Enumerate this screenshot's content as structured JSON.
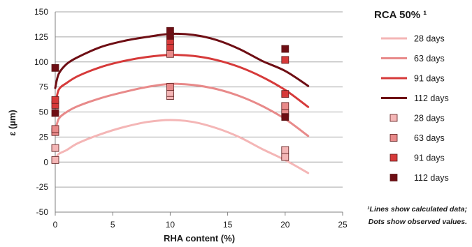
{
  "chart_data": {
    "type": "line",
    "title": "RCA 50% ¹",
    "xlabel": "RHA content (%)",
    "ylabel": "ε (µm)",
    "xlim": [
      0,
      25
    ],
    "ylim": [
      -50,
      150
    ],
    "xticks": [
      0,
      5,
      10,
      15,
      20,
      25
    ],
    "yticks": [
      -50,
      -25,
      0,
      25,
      50,
      75,
      100,
      125,
      150
    ],
    "grid": "horizontal",
    "legend_position": "right",
    "note": [
      "¹Lines show calculated data;",
      "Dots show observed values."
    ],
    "line_series": [
      {
        "name": "28 days",
        "color": "#f4b6b6",
        "x": [
          0,
          0.3,
          1,
          2,
          4,
          6,
          8,
          10,
          12,
          14,
          16,
          18,
          20,
          22
        ],
        "y": [
          2,
          8,
          12,
          19,
          28,
          35,
          40,
          42,
          40,
          34,
          25,
          13,
          2,
          -11
        ]
      },
      {
        "name": "63 days",
        "color": "#e88a8a",
        "x": [
          0,
          0.3,
          1,
          2,
          4,
          6,
          8,
          10,
          12,
          14,
          16,
          18,
          20,
          22
        ],
        "y": [
          30,
          43,
          50,
          56,
          64,
          70,
          75,
          78,
          77,
          73,
          66,
          56,
          43,
          26
        ]
      },
      {
        "name": "91 days",
        "color": "#d63a3a",
        "x": [
          0,
          0.3,
          1,
          2,
          4,
          6,
          8,
          10,
          12,
          14,
          16,
          18,
          20,
          22
        ],
        "y": [
          56,
          72,
          79,
          86,
          95,
          101,
          105,
          107,
          106,
          102,
          95,
          85,
          72,
          55
        ]
      },
      {
        "name": "112 days",
        "color": "#6e0e14",
        "x": [
          0,
          0.3,
          1,
          2,
          4,
          6,
          8,
          10,
          12,
          14,
          16,
          18,
          20,
          22
        ],
        "y": [
          74,
          88,
          98,
          105,
          115,
          121,
          125,
          128,
          127,
          122,
          113,
          101,
          91,
          76
        ]
      }
    ],
    "point_series": [
      {
        "name": "28 days",
        "color": "#f4b6b6",
        "x": [
          0,
          0,
          10,
          10,
          20,
          20
        ],
        "y": [
          2,
          14,
          66,
          69,
          5,
          12
        ]
      },
      {
        "name": "63 days",
        "color": "#e88a8a",
        "x": [
          0,
          0,
          10,
          10,
          20,
          20
        ],
        "y": [
          30,
          33,
          75,
          108,
          49,
          56
        ]
      },
      {
        "name": "91 days",
        "color": "#d63a3a",
        "x": [
          0,
          0,
          10,
          10,
          20,
          20
        ],
        "y": [
          57,
          62,
          115,
          121,
          68,
          102
        ]
      },
      {
        "name": "112 days",
        "color": "#6e0e14",
        "x": [
          0,
          0,
          10,
          10,
          20,
          20
        ],
        "y": [
          49,
          94,
          126,
          131,
          45,
          113
        ]
      }
    ]
  }
}
